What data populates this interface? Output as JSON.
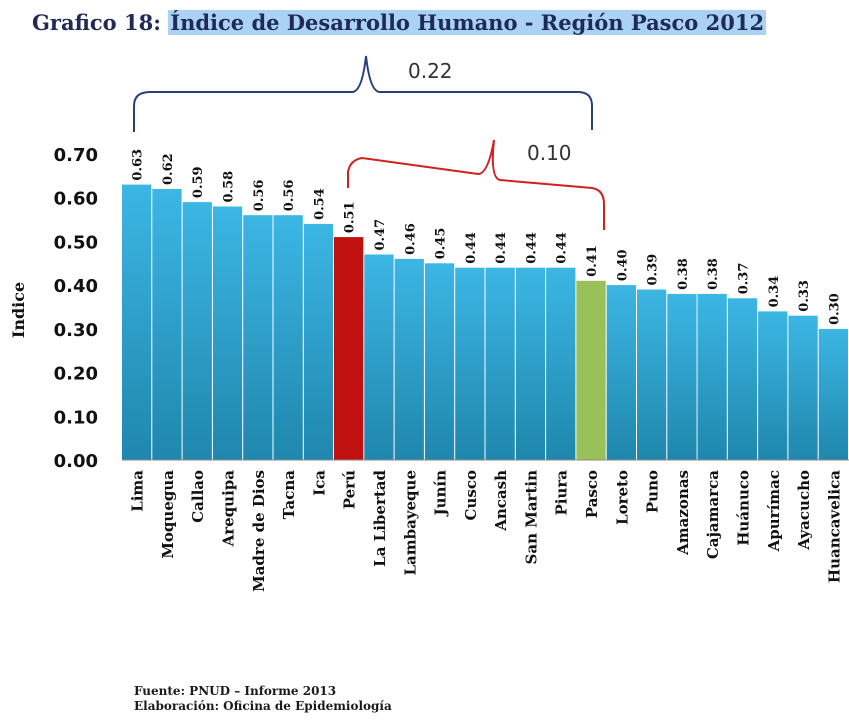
{
  "title_prefix": "Grafico 18:",
  "title_main": "Índice de Desarrollo Humano - Región Pasco 2012",
  "footer": {
    "source": "Fuente: PNUD – Informe 2013",
    "credit": "Elaboración: Oficina de Epidemiología"
  },
  "annotations": {
    "gap_top": "0.22",
    "gap_mid": "0.10"
  },
  "colors": {
    "bar": "#2fa3cf",
    "highlight_peru": "#c0100f",
    "highlight_pasco": "#9ac05a",
    "brace_top": "#2a3f7a",
    "brace_mid": "#d22020"
  },
  "chart_data": {
    "type": "bar",
    "ylabel": "Indice",
    "ylim": [
      0.0,
      0.7
    ],
    "yticks": [
      "0.00",
      "0.10",
      "0.20",
      "0.30",
      "0.40",
      "0.50",
      "0.60",
      "0.70"
    ],
    "grid": false,
    "categories": [
      "Lima",
      "Moquegua",
      "Callao",
      "Arequipa",
      "Madre de Dios",
      "Tacna",
      "Ica",
      "Perú",
      "La Libertad",
      "Lambayeque",
      "Junín",
      "Cusco",
      "Ancash",
      "San Martin",
      "Piura",
      "Pasco",
      "Loreto",
      "Puno",
      "Amazonas",
      "Cajamarca",
      "Huánuco",
      "Apurímac",
      "Ayacucho",
      "Huancavelica"
    ],
    "values": [
      0.63,
      0.62,
      0.59,
      0.58,
      0.56,
      0.56,
      0.54,
      0.51,
      0.47,
      0.46,
      0.45,
      0.44,
      0.44,
      0.44,
      0.44,
      0.41,
      0.4,
      0.39,
      0.38,
      0.38,
      0.37,
      0.34,
      0.33,
      0.3
    ],
    "data_labels": [
      "0.63",
      "0.62",
      "0.59",
      "0.58",
      "0.56",
      "0.56",
      "0.54",
      "0.51",
      "0.47",
      "0.46",
      "0.45",
      "0.44",
      "0.44",
      "0.44",
      "0.44",
      "0.41",
      "0.40",
      "0.39",
      "0.38",
      "0.38",
      "0.37",
      "0.34",
      "0.33",
      "0.30"
    ],
    "highlights": {
      "Perú": "highlight_peru",
      "Pasco": "highlight_pasco"
    }
  }
}
